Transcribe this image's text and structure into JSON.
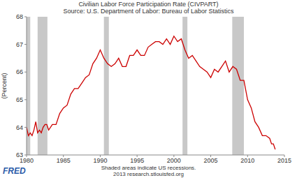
{
  "chart_data": {
    "type": "line",
    "title": "Civilian Labor Force Participation Rate (CIVPART)",
    "subtitle": "Source: U.S. Department of Labor: Bureau of Labor Statistics",
    "y_label": "(Percent)",
    "footnote": "Shaded areas indicate US recessions.",
    "credit": "2013 research.stlouisfed.org",
    "logo": "FRED",
    "color": "#cc0000",
    "grid": false,
    "xlim": [
      1980,
      2015
    ],
    "xticks": [
      1980,
      1985,
      1990,
      1995,
      2000,
      2005,
      2010,
      2015
    ],
    "ylim": [
      63,
      68
    ],
    "yticks": [
      63,
      64,
      65,
      66,
      67,
      68
    ],
    "recessions": [
      [
        1980.0,
        1980.5
      ],
      [
        1981.5,
        1982.83
      ],
      [
        1990.5,
        1991.17
      ],
      [
        2001.17,
        2001.83
      ],
      [
        2007.92,
        2009.5
      ]
    ],
    "x": [
      1980.0,
      1980.25,
      1980.5,
      1980.75,
      1981.0,
      1981.25,
      1981.5,
      1981.75,
      1982.0,
      1982.25,
      1982.5,
      1982.75,
      1983.0,
      1983.5,
      1984.0,
      1984.5,
      1985.0,
      1985.5,
      1986.0,
      1986.5,
      1987.0,
      1987.5,
      1988.0,
      1988.5,
      1989.0,
      1989.5,
      1990.0,
      1990.5,
      1991.0,
      1991.5,
      1992.0,
      1992.5,
      1993.0,
      1993.5,
      1994.0,
      1994.5,
      1995.0,
      1995.5,
      1996.0,
      1996.5,
      1997.0,
      1997.5,
      1998.0,
      1998.5,
      1999.0,
      1999.5,
      2000.0,
      2000.5,
      2001.0,
      2001.5,
      2002.0,
      2002.5,
      2003.0,
      2003.5,
      2004.0,
      2004.5,
      2005.0,
      2005.5,
      2006.0,
      2006.5,
      2007.0,
      2007.5,
      2008.0,
      2008.5,
      2009.0,
      2009.5,
      2010.0,
      2010.5,
      2011.0,
      2011.5,
      2012.0,
      2012.5,
      2013.0,
      2013.25,
      2013.5,
      2013.75
    ],
    "values": [
      64.0,
      63.7,
      63.8,
      63.7,
      63.9,
      64.2,
      63.8,
      63.9,
      63.8,
      64.0,
      64.1,
      64.1,
      63.9,
      64.1,
      64.1,
      64.5,
      64.7,
      64.8,
      65.2,
      65.4,
      65.4,
      65.6,
      65.8,
      65.9,
      66.3,
      66.5,
      66.8,
      66.5,
      66.3,
      66.2,
      66.3,
      66.5,
      66.2,
      66.2,
      66.6,
      66.6,
      66.8,
      66.6,
      66.6,
      66.9,
      67.0,
      67.1,
      67.1,
      67.0,
      67.2,
      67.0,
      67.3,
      67.1,
      67.2,
      66.8,
      66.5,
      66.6,
      66.4,
      66.2,
      66.1,
      66.0,
      65.8,
      66.1,
      66.0,
      66.2,
      66.4,
      66.0,
      66.2,
      66.1,
      65.7,
      65.7,
      65.0,
      64.7,
      64.2,
      64.0,
      63.7,
      63.7,
      63.6,
      63.4,
      63.4,
      63.2
    ]
  }
}
